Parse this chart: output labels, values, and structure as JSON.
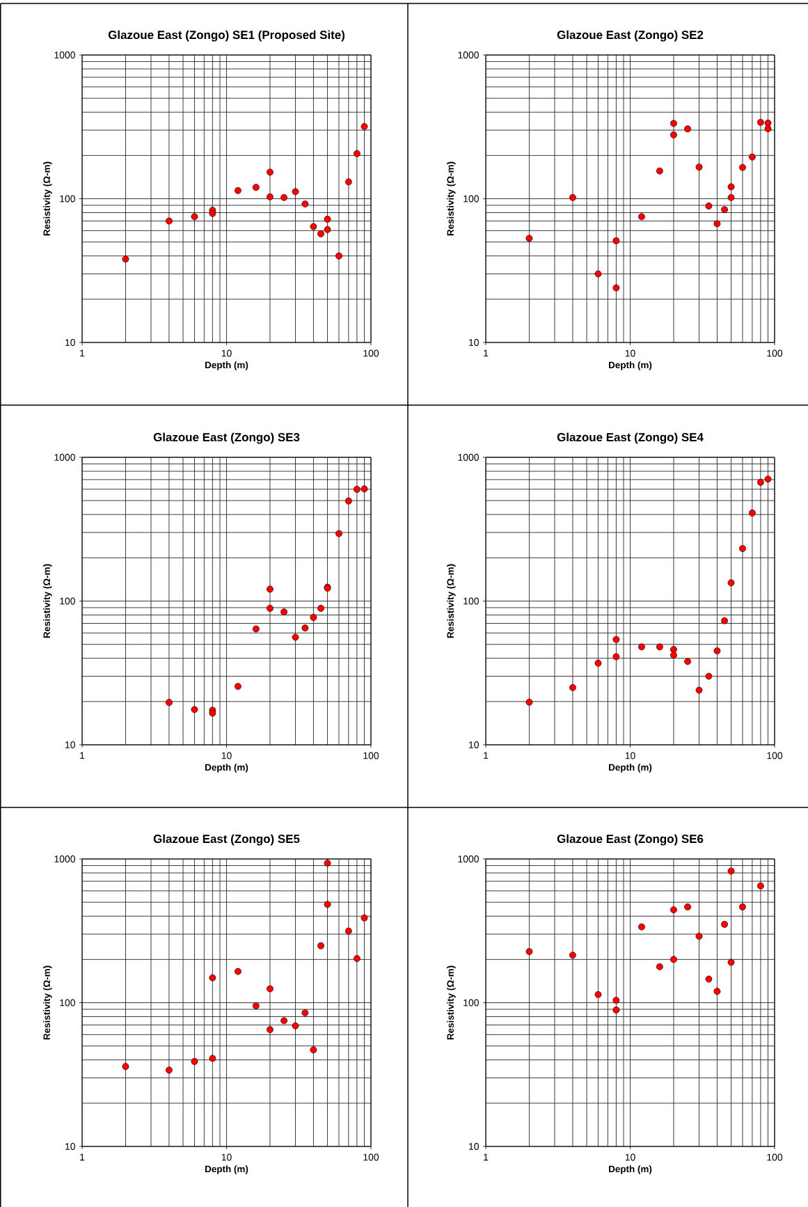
{
  "chart_data": [
    {
      "type": "scatter",
      "title": "Glazoue East (Zongo) SE1 (Proposed Site)",
      "xlabel": "Depth (m)",
      "ylabel": "Resistivity (Ω-m)",
      "log": "xy",
      "grid": true,
      "marker": "circle",
      "color": "#ff0000",
      "xlim": [
        1,
        100
      ],
      "ylim": [
        10,
        1000
      ],
      "xticks": [
        1,
        10,
        100
      ],
      "yticks": [
        10,
        100,
        1000
      ],
      "x": [
        2,
        4,
        6,
        8,
        8,
        12,
        16,
        20,
        20,
        25,
        30,
        35,
        40,
        45,
        50,
        50,
        60,
        70,
        80,
        90
      ],
      "values": [
        38,
        70,
        75,
        83,
        79,
        114,
        120,
        153,
        103,
        102,
        112,
        92,
        64,
        57,
        72,
        61,
        40,
        131,
        206,
        318
      ]
    },
    {
      "type": "scatter",
      "title": "Glazoue East (Zongo) SE2",
      "xlabel": "Depth (m)",
      "ylabel": "Resistivity (Ω-m)",
      "log": "xy",
      "grid": true,
      "marker": "circle",
      "color": "#ff0000",
      "xlim": [
        1,
        100
      ],
      "ylim": [
        10,
        1000
      ],
      "xticks": [
        1,
        10,
        100
      ],
      "yticks": [
        10,
        100,
        1000
      ],
      "x": [
        2,
        4,
        6,
        8,
        8,
        12,
        16,
        20,
        20,
        25,
        30,
        35,
        40,
        45,
        50,
        50,
        60,
        70,
        80,
        90,
        90
      ],
      "values": [
        53,
        102,
        30,
        51,
        24,
        75,
        156,
        334,
        278,
        306,
        166,
        89,
        67,
        84,
        121,
        102,
        165,
        195,
        340,
        336,
        307
      ]
    },
    {
      "type": "scatter",
      "title": "Glazoue East (Zongo) SE3",
      "xlabel": "Depth (m)",
      "ylabel": "Resistivity (Ω-m)",
      "log": "xy",
      "grid": true,
      "marker": "circle",
      "color": "#ff0000",
      "xlim": [
        1,
        100
      ],
      "ylim": [
        10,
        1000
      ],
      "xticks": [
        1,
        10,
        100
      ],
      "yticks": [
        10,
        100,
        1000
      ],
      "x": [
        4,
        6,
        8,
        8,
        12,
        16,
        20,
        20,
        25,
        30,
        35,
        40,
        45,
        50,
        50,
        60,
        70,
        80,
        90
      ],
      "values": [
        19.7,
        17.6,
        17.4,
        16.6,
        25.5,
        64,
        121,
        89,
        84,
        56,
        65,
        77,
        89,
        125,
        123,
        295,
        497,
        599,
        603
      ]
    },
    {
      "type": "scatter",
      "title": "Glazoue East (Zongo) SE4",
      "xlabel": "Depth (m)",
      "ylabel": "Resistivity (Ω-m)",
      "log": "xy",
      "grid": true,
      "marker": "circle",
      "color": "#ff0000",
      "xlim": [
        1,
        100
      ],
      "ylim": [
        10,
        1000
      ],
      "xticks": [
        1,
        10,
        100
      ],
      "yticks": [
        10,
        100,
        1000
      ],
      "x": [
        2,
        4,
        6,
        8,
        8,
        12,
        16,
        20,
        20,
        25,
        30,
        35,
        40,
        45,
        50,
        60,
        70,
        80,
        90
      ],
      "values": [
        19.8,
        25,
        37,
        54,
        41,
        48,
        48,
        46,
        42,
        38,
        24,
        30,
        45,
        73,
        134,
        232,
        410,
        670,
        705
      ]
    },
    {
      "type": "scatter",
      "title": "Glazoue East (Zongo) SE5",
      "xlabel": "Depth (m)",
      "ylabel": "Resistivity (Ω-m)",
      "log": "xy",
      "grid": true,
      "marker": "circle",
      "color": "#ff0000",
      "xlim": [
        1,
        100
      ],
      "ylim": [
        10,
        1000
      ],
      "xticks": [
        1,
        10,
        100
      ],
      "yticks": [
        10,
        100,
        1000
      ],
      "x": [
        2,
        4,
        6,
        8,
        8,
        12,
        16,
        20,
        20,
        25,
        30,
        35,
        40,
        45,
        50,
        50,
        70,
        80,
        90
      ],
      "values": [
        36,
        34,
        39,
        41,
        149,
        165,
        95,
        125,
        65,
        75,
        69,
        85,
        47,
        249,
        935,
        483,
        315,
        203,
        389
      ]
    },
    {
      "type": "scatter",
      "title": "Glazoue East (Zongo) SE6",
      "xlabel": "Depth (m)",
      "ylabel": "Resistivity (Ω-m)",
      "log": "xy",
      "grid": true,
      "marker": "circle",
      "color": "#ff0000",
      "xlim": [
        1,
        100
      ],
      "ylim": [
        10,
        1000
      ],
      "xticks": [
        1,
        10,
        100
      ],
      "yticks": [
        10,
        100,
        1000
      ],
      "x": [
        2,
        4,
        6,
        8,
        8,
        12,
        16,
        20,
        20,
        25,
        30,
        35,
        40,
        45,
        50,
        50,
        60,
        80
      ],
      "values": [
        227,
        214,
        114,
        104,
        89,
        337,
        178,
        443,
        200,
        464,
        290,
        146,
        120,
        351,
        824,
        191,
        464,
        650
      ]
    }
  ]
}
